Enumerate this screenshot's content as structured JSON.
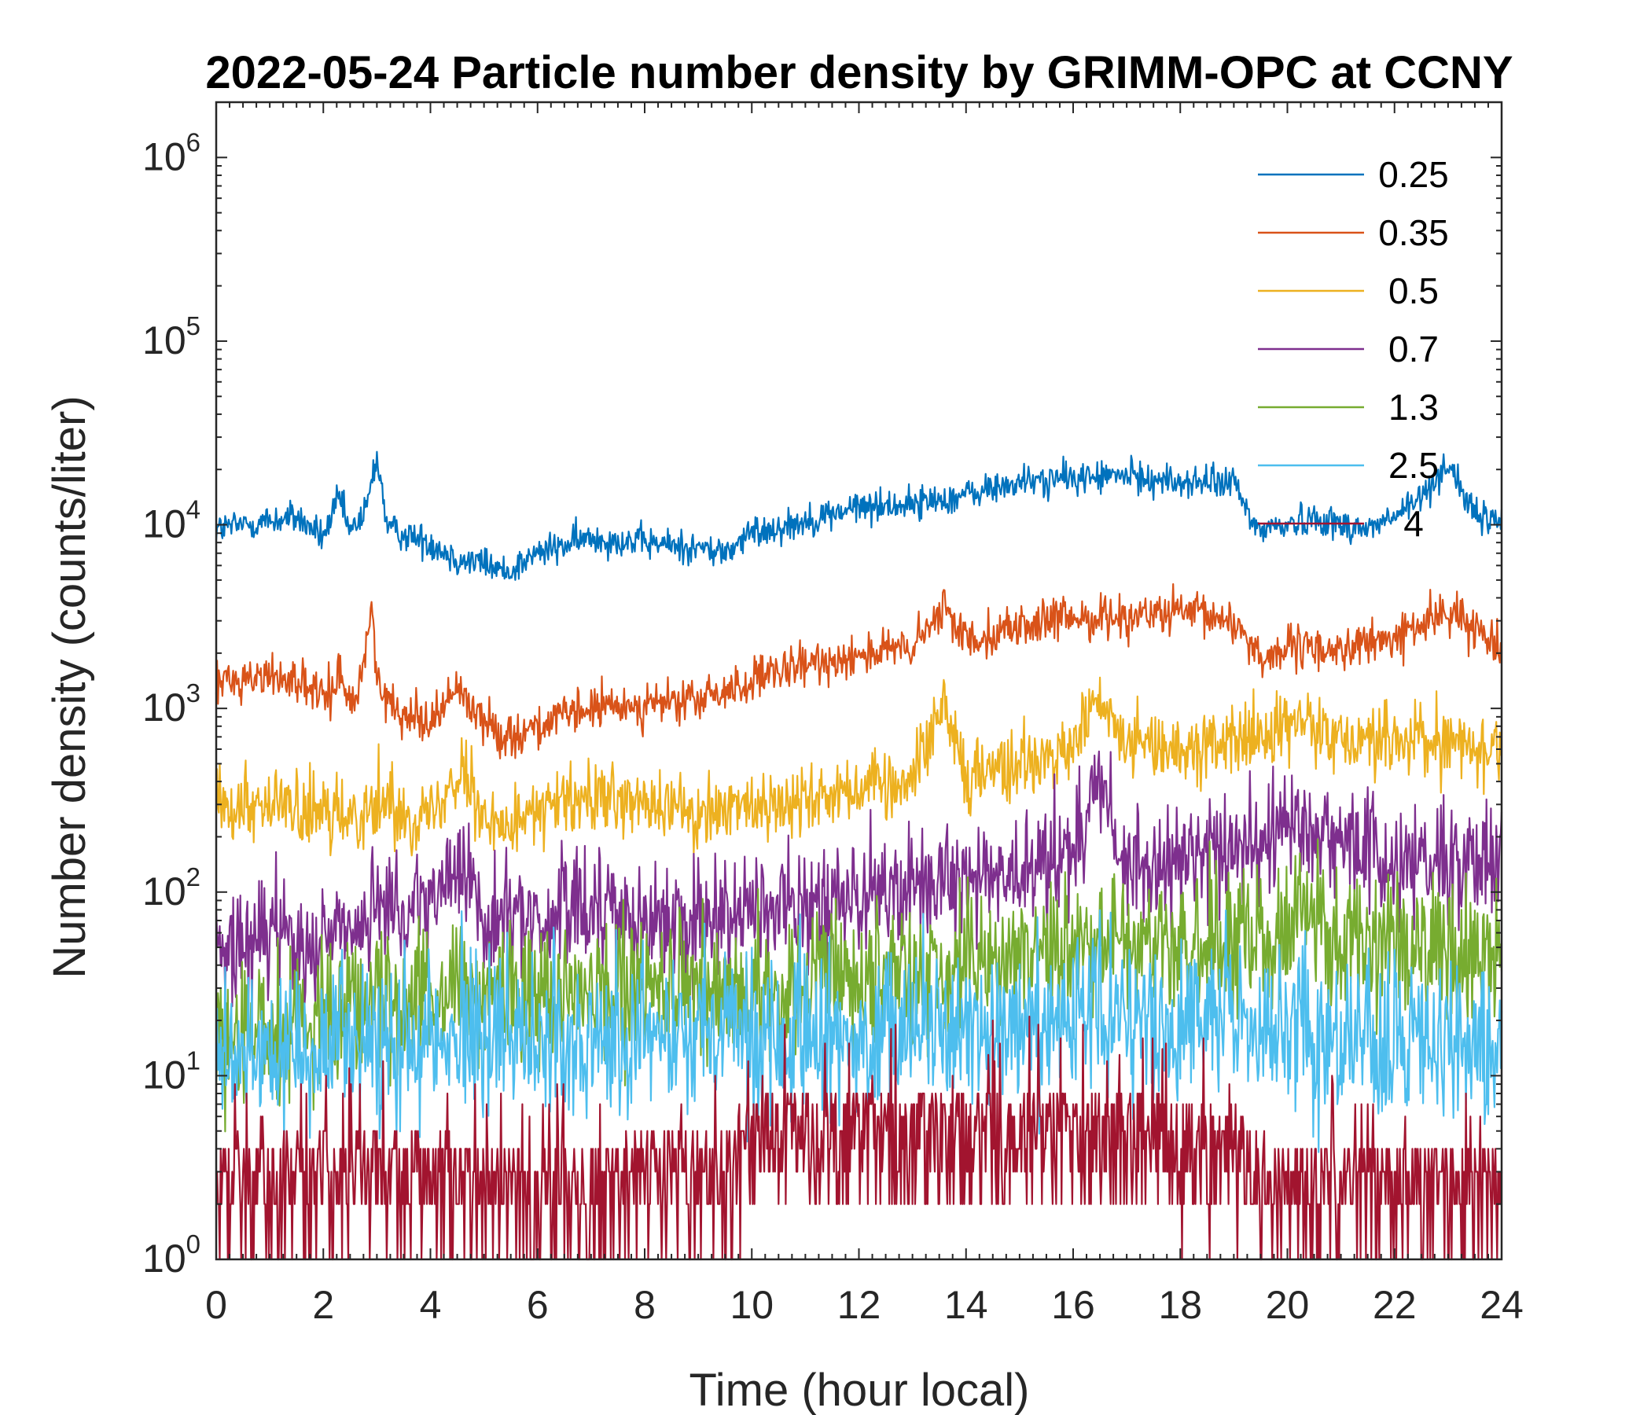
{
  "chart_data": {
    "type": "line",
    "title": "2022-05-24 Particle number density by GRIMM-OPC at CCNY",
    "xlabel": "Time (hour local)",
    "ylabel": "Number density (counts/liter)",
    "xlim": [
      0,
      24
    ],
    "ylim": [
      1,
      2000000
    ],
    "yscale": "log",
    "xticks": [
      0,
      2,
      4,
      6,
      8,
      10,
      12,
      14,
      16,
      18,
      20,
      22,
      24
    ],
    "xtick_labels": [
      "0",
      "2",
      "4",
      "6",
      "8",
      "10",
      "12",
      "14",
      "16",
      "18",
      "20",
      "22",
      "24"
    ],
    "yticks": [
      1,
      10,
      100,
      1000,
      10000,
      100000,
      1000000
    ],
    "ytick_labels": [
      {
        "base": "10",
        "exp": "0"
      },
      {
        "base": "10",
        "exp": "1"
      },
      {
        "base": "10",
        "exp": "2"
      },
      {
        "base": "10",
        "exp": "3"
      },
      {
        "base": "10",
        "exp": "4"
      },
      {
        "base": "10",
        "exp": "5"
      },
      {
        "base": "10",
        "exp": "6"
      }
    ],
    "legend_position": "top-right",
    "series": [
      {
        "name": "0.25",
        "color": "#0072BD",
        "key_x": [
          0,
          1,
          1.5,
          2,
          2.3,
          2.5,
          2.8,
          3,
          3.2,
          4,
          4.5,
          5,
          5.4,
          6,
          7,
          8,
          9,
          9.5,
          10,
          11,
          12,
          13,
          14,
          15,
          16,
          17,
          18,
          19,
          19.4,
          20,
          20.5,
          21,
          21.5,
          22,
          22.5,
          23,
          23.5,
          24
        ],
        "key_y": [
          9500,
          10500,
          11000,
          8500,
          14000,
          9000,
          12000,
          24000,
          9500,
          8000,
          6500,
          6200,
          5500,
          7000,
          8500,
          8000,
          7500,
          7000,
          9000,
          10500,
          12500,
          13000,
          14500,
          17000,
          18000,
          18500,
          17000,
          17000,
          9500,
          10000,
          11000,
          10000,
          9500,
          11000,
          14000,
          22000,
          11000,
          10500
        ]
      },
      {
        "name": "0.35",
        "color": "#D95319",
        "key_x": [
          0,
          1,
          1.5,
          2,
          2.3,
          2.6,
          2.9,
          3.1,
          4,
          4.5,
          5,
          5.4,
          6,
          7,
          8,
          9,
          10,
          11,
          12,
          13,
          13.6,
          14,
          15,
          16,
          17,
          18,
          19,
          19.5,
          20,
          21,
          22,
          23,
          23.5,
          24
        ],
        "key_y": [
          1400,
          1500,
          1450,
          1100,
          1500,
          1050,
          3200,
          1100,
          850,
          1300,
          850,
          700,
          800,
          1000,
          1050,
          1100,
          1400,
          1700,
          2000,
          2100,
          3500,
          2400,
          2800,
          3100,
          3200,
          3300,
          3000,
          1900,
          2100,
          2100,
          2400,
          3400,
          2700,
          2300
        ]
      },
      {
        "name": "0.5",
        "color": "#EDB120",
        "key_x": [
          0,
          1,
          2,
          3,
          4,
          4.6,
          5,
          6,
          7,
          8,
          9,
          10,
          11,
          12,
          13,
          13.6,
          14,
          15,
          16,
          16.4,
          17,
          18,
          19,
          20,
          20.3,
          21,
          22,
          23,
          24
        ],
        "key_y": [
          320,
          300,
          250,
          300,
          260,
          520,
          230,
          280,
          320,
          300,
          260,
          300,
          320,
          380,
          400,
          1100,
          420,
          500,
          570,
          1200,
          620,
          620,
          650,
          750,
          950,
          700,
          680,
          650,
          600
        ]
      },
      {
        "name": "0.7",
        "color": "#7E2F8E",
        "key_x": [
          0,
          1,
          2,
          3,
          4,
          4.6,
          5,
          6,
          7,
          8,
          9,
          10,
          11,
          12,
          13,
          14,
          15,
          15.5,
          16,
          16.4,
          17,
          18,
          19,
          20,
          20.5,
          21,
          22,
          23,
          24
        ],
        "key_y": [
          45,
          55,
          60,
          70,
          80,
          150,
          70,
          75,
          80,
          75,
          70,
          80,
          85,
          95,
          100,
          115,
          125,
          160,
          150,
          450,
          140,
          150,
          160,
          210,
          230,
          190,
          150,
          140,
          150
        ]
      },
      {
        "name": "1.3",
        "color": "#77AC30",
        "key_x": [
          0,
          2,
          4,
          6,
          8,
          10,
          12,
          14,
          16,
          17,
          18,
          19,
          20,
          20.5,
          21,
          22,
          23,
          24
        ],
        "key_y": [
          15,
          22,
          28,
          28,
          30,
          30,
          32,
          38,
          50,
          52,
          50,
          52,
          65,
          80,
          55,
          50,
          42,
          45
        ]
      },
      {
        "name": "2.5",
        "color": "#4DBEEE",
        "key_x": [
          0,
          2,
          4,
          6,
          8,
          10,
          12,
          14,
          16,
          17,
          18,
          20,
          22,
          24
        ],
        "key_y": [
          12,
          15,
          17,
          16,
          16,
          16,
          16,
          18,
          22,
          20,
          19,
          18,
          15,
          14
        ]
      },
      {
        "name": "4",
        "color": "#A2142F",
        "key_x": [
          0,
          2,
          4,
          6,
          8,
          9.5,
          10,
          12,
          14,
          16,
          17,
          18,
          19,
          20,
          22,
          24
        ],
        "key_y": [
          2.5,
          3,
          3,
          2.2,
          3,
          3,
          5,
          5,
          5,
          5,
          5,
          4.5,
          4,
          2.5,
          2.5,
          2.5
        ]
      }
    ]
  }
}
